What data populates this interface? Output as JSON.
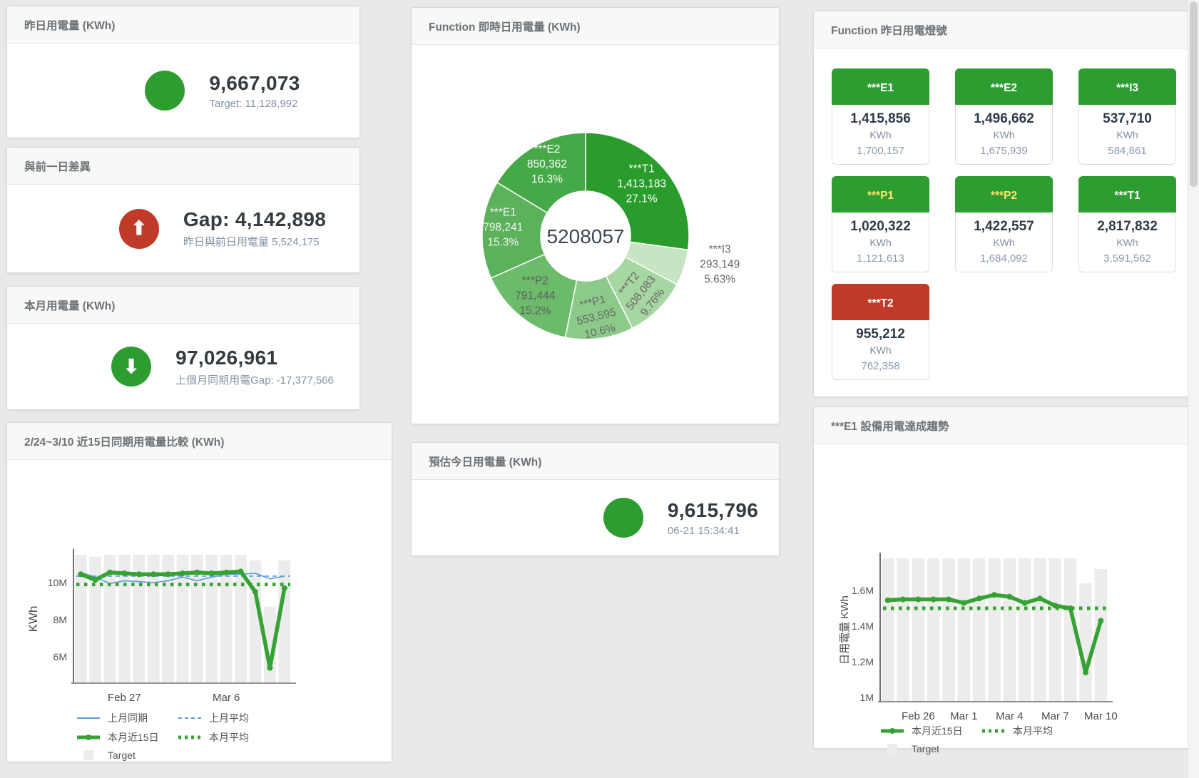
{
  "colors": {
    "green": "#2e9d31",
    "red": "#c03a28",
    "yellow_text": "#ffe76a",
    "white_text": "#ffffff",
    "blue_line": "#5b9bd5",
    "green_line": "#35a233",
    "target_bar": "#ececec"
  },
  "cards": {
    "yesterday": {
      "title": "昨日用電量 (KWh)",
      "value": "9,667,073",
      "subtitle": "Target: 11,128,992",
      "icon": ""
    },
    "gap_prev_day": {
      "title": "與前一日差異",
      "value": "Gap: 4,142,898",
      "subtitle": "昨日與前日用電量 5,524,175",
      "icon": "⬆"
    },
    "month": {
      "title": "本月用電量 (KWh)",
      "value": "97,026,961",
      "subtitle": "上個月同期用電Gap: -17,377,566",
      "icon": "⬇"
    },
    "estimate": {
      "title": "預估今日用電量 (KWh)",
      "value": "9,615,796",
      "subtitle": "06-21 15:34:41",
      "icon": ""
    },
    "donut": {
      "title": "Function 即時日用電量 (KWh)"
    },
    "lamps": {
      "title": "Function 昨日用電燈號",
      "unit": "KWh",
      "tiles": [
        {
          "label": "***E1",
          "value": "1,415,856",
          "target": "1,700,157",
          "status": "green",
          "text": "white_text"
        },
        {
          "label": "***E2",
          "value": "1,496,662",
          "target": "1,675,939",
          "status": "green",
          "text": "white_text"
        },
        {
          "label": "***I3",
          "value": "537,710",
          "target": "584,861",
          "status": "green",
          "text": "white_text"
        },
        {
          "label": "***P1",
          "value": "1,020,322",
          "target": "1,121,613",
          "status": "green",
          "text": "yellow_text"
        },
        {
          "label": "***P2",
          "value": "1,422,557",
          "target": "1,684,092",
          "status": "green",
          "text": "yellow_text"
        },
        {
          "label": "***T1",
          "value": "2,817,832",
          "target": "3,591,562",
          "status": "green",
          "text": "white_text"
        },
        {
          "label": "***T2",
          "value": "955,212",
          "target": "762,358",
          "status": "red",
          "text": "white_text"
        }
      ]
    },
    "compare": {
      "title": "2/24~3/10 近15日同期用電量比較 (KWh)"
    },
    "trend": {
      "title": "***E1 設備用電達成趨勢"
    }
  },
  "chart_data": [
    {
      "id": "donut",
      "type": "pie",
      "title": "Function 即時日用電量 (KWh)",
      "center_label": "5208057",
      "slices": [
        {
          "name": "***T1",
          "value": 1413183,
          "value_label": "1,413,183",
          "percent_label": "27.1%",
          "color": "#2a9c2c",
          "label": {
            "pos": "inside",
            "color": "#ffffff",
            "r": 0.72,
            "rotate": 0,
            "dx": 0,
            "dy": 0
          }
        },
        {
          "name": "***I3",
          "value": 293149,
          "value_label": "293,149",
          "percent_label": "5.63%",
          "color": "#c6e5c2",
          "label": {
            "pos": "outside",
            "color": "#666666",
            "r": 1.32,
            "rotate": 0,
            "dx": 6,
            "dy": -14
          }
        },
        {
          "name": "***T2",
          "value": 508083,
          "value_label": "508,083",
          "percent_label": "9.76%",
          "color": "#a6d6a2",
          "label": {
            "pos": "inside",
            "color": "#666666",
            "r": 0.8,
            "rotate": -52,
            "dx": 0,
            "dy": 0
          }
        },
        {
          "name": "***P1",
          "value": 553595,
          "value_label": "553,595",
          "percent_label": "10.6%",
          "color": "#8cca89",
          "label": {
            "pos": "inside",
            "color": "#666666",
            "r": 0.82,
            "rotate": -14,
            "dx": 0,
            "dy": 0
          }
        },
        {
          "name": "***P2",
          "value": 791444,
          "value_label": "791,444",
          "percent_label": "15.2%",
          "color": "#6cbb6b",
          "label": {
            "pos": "inside",
            "color": "#5d5d5d",
            "r": 0.78,
            "rotate": 0,
            "dx": 0,
            "dy": 0
          }
        },
        {
          "name": "***E1",
          "value": 798241,
          "value_label": "798,241",
          "percent_label": "15.3%",
          "color": "#5bb25b",
          "label": {
            "pos": "inside",
            "color": "#f4f4f4",
            "r": 0.8,
            "rotate": 0,
            "dx": 0,
            "dy": 0
          }
        },
        {
          "name": "***E2",
          "value": 850362,
          "value_label": "850,362",
          "percent_label": "16.3%",
          "color": "#46a948",
          "label": {
            "pos": "inside",
            "color": "#ffffff",
            "r": 0.76,
            "rotate": 0,
            "dx": 0,
            "dy": 0
          }
        }
      ]
    },
    {
      "id": "compare",
      "type": "line",
      "title": "2/24~3/10 近15日同期用電量比較 (KWh)",
      "ylabel": "KWh",
      "n_points": 15,
      "ylim": [
        4.58,
        11.5
      ],
      "y_ticks": [
        {
          "v": 6,
          "label": "6M"
        },
        {
          "v": 8,
          "label": "8M"
        },
        {
          "v": 10,
          "label": "10M"
        }
      ],
      "x_ticks": [
        {
          "i": 3,
          "label": "Feb 27"
        },
        {
          "i": 10,
          "label": "Mar 6"
        }
      ],
      "target_bars": {
        "name": "Target",
        "color": "#ececec",
        "values": [
          11.5,
          11.4,
          11.5,
          11.5,
          11.5,
          11.5,
          11.5,
          11.5,
          11.5,
          11.5,
          11.5,
          11.5,
          11.2,
          8.7,
          11.2
        ]
      },
      "series": [
        {
          "name": "上月同期",
          "style": "solid",
          "color": "#5b9bd5",
          "width": 1.6,
          "values": [
            10.55,
            10.3,
            9.95,
            10.1,
            10.05,
            10.0,
            10.1,
            10.3,
            10.1,
            10.3,
            10.45,
            10.45,
            10.5,
            10.2,
            10.35
          ]
        },
        {
          "name": "上月平均",
          "style": "dashed",
          "color": "#5b9bd5",
          "width": 1.6,
          "const": 10.35
        },
        {
          "name": "本月近15日",
          "style": "thick",
          "color": "#35a233",
          "width": 5.5,
          "markers": true,
          "values": [
            10.45,
            10.15,
            10.55,
            10.5,
            10.45,
            10.45,
            10.45,
            10.5,
            10.55,
            10.5,
            10.55,
            10.6,
            9.5,
            5.4,
            9.7
          ]
        },
        {
          "name": "本月平均",
          "style": "dotted",
          "color": "#35a233",
          "width": 5,
          "const": 9.9
        }
      ],
      "legend_rows": [
        [
          "上月同期",
          "上月平均"
        ],
        [
          "本月近15日",
          "本月平均"
        ],
        [
          "Target"
        ]
      ]
    },
    {
      "id": "trend",
      "type": "line",
      "title": "***E1 設備用電達成趨勢",
      "ylabel": "日用電量 KWh",
      "n_points": 15,
      "ylim": [
        0.976,
        1.78
      ],
      "y_ticks": [
        {
          "v": 1,
          "label": "1M"
        },
        {
          "v": 1.2,
          "label": "1.2M"
        },
        {
          "v": 1.4,
          "label": "1.4M"
        },
        {
          "v": 1.6,
          "label": "1.6M"
        }
      ],
      "x_ticks": [
        {
          "i": 2,
          "label": "Feb 26"
        },
        {
          "i": 5,
          "label": "Mar 1"
        },
        {
          "i": 8,
          "label": "Mar 4"
        },
        {
          "i": 11,
          "label": "Mar 7"
        },
        {
          "i": 14,
          "label": "Mar 10"
        }
      ],
      "target_bars": {
        "name": "Target",
        "color": "#ececec",
        "values": [
          1.78,
          1.78,
          1.78,
          1.78,
          1.78,
          1.78,
          1.78,
          1.78,
          1.78,
          1.78,
          1.78,
          1.78,
          1.78,
          1.64,
          1.72
        ]
      },
      "series": [
        {
          "name": "本月近15日",
          "style": "thick",
          "color": "#35a233",
          "width": 5.5,
          "markers": true,
          "values": [
            1.545,
            1.55,
            1.55,
            1.55,
            1.55,
            1.53,
            1.555,
            1.575,
            1.565,
            1.53,
            1.555,
            1.515,
            1.5,
            1.14,
            1.43
          ]
        },
        {
          "name": "本月平均",
          "style": "dotted",
          "color": "#35a233",
          "width": 5,
          "const": 1.5
        }
      ],
      "legend_rows": [
        [
          "本月近15日",
          "本月平均"
        ],
        [
          "Target"
        ]
      ]
    }
  ]
}
